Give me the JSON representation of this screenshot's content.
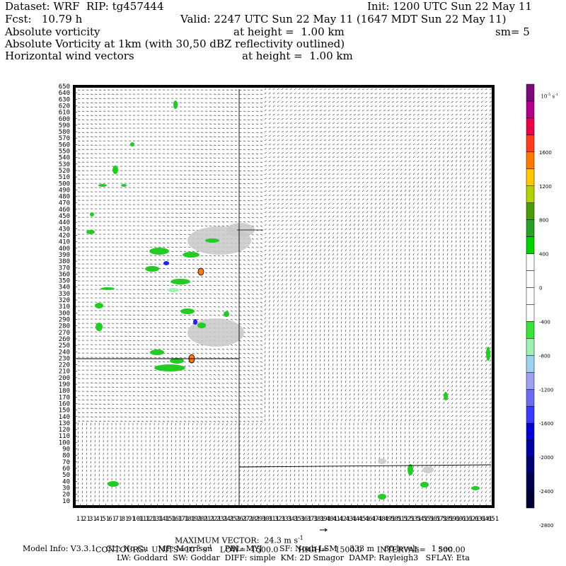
{
  "header": {
    "dataset": "Dataset: WRF  RIP: tg457444",
    "init": "Init: 1200 UTC Sun 22 May 11",
    "fcst": "Fcst:   10.79 h",
    "valid": "Valid: 2247 UTC Sun 22 May 11 (1647 MDT Sun 22 May 11)",
    "line3_left": "Absolute vorticity",
    "line3_mid": "at height =  1.00 km",
    "line3_right": "sm= 5",
    "line4": "Absolute Vorticity at 1km (with 30,50 dBZ reflectivity outlined)",
    "line5_left": "Horizontal wind vectors",
    "line5_mid": "at height =  1.00 km"
  },
  "footer": {
    "max_vector": "MAXIMUM VECTOR:  24.3 m s",
    "max_vector_sup": "-1",
    "contours": "CONTOURS:  UNITS=10",
    "contours_sup1": "-5",
    "contours_rest": " s",
    "contours_sup2": "-1",
    "contours_tail": "   LOW= -1500.0        HIGH=   1500.0      INTERVAL=     500.00",
    "model_info": "Model Info: V3.3.1    CU: No Cu    MP: Morrison     PBL: MYJ       SF: Noah LSM     333 m    60 levels     1 sec",
    "model_info2": "LW: Goddard  SW: Goddar  DIFF: simple  KM: 2D Smagor  DAMP: Rayleigh3   SFLAY: Eta"
  },
  "colorbar": {
    "unit_label": "10",
    "unit_sup": "-5",
    "unit_tail": " s",
    "unit_sup2": "-1",
    "colors": [
      "#7a0a7a",
      "#b0008a",
      "#e8004a",
      "#ff3c1e",
      "#ff7a00",
      "#ffc800",
      "#b4d200",
      "#4c9c0a",
      "#2aa02a",
      "#00d200",
      "#ffffff",
      "#ffffff",
      "#ffffff",
      "#ffffff",
      "#3ae23a",
      "#9ef0b4",
      "#9ed2f0",
      "#a0a0f0",
      "#6c6cf0",
      "#3a3aff",
      "#0000d2",
      "#0000a0",
      "#00006e",
      "#00004a",
      "#000034"
    ],
    "tick_labels": [
      "1600",
      "1200",
      "800",
      "400",
      "0",
      "-400",
      "-800",
      "-1200",
      "-1600",
      "-2000",
      "-2400",
      "-2800"
    ]
  },
  "chart_data": {
    "type": "heatmap",
    "title": "Absolute vorticity at height = 1.00 km",
    "y_tick_labels": [
      "10",
      "20",
      "30",
      "40",
      "50",
      "60",
      "70",
      "80",
      "90",
      "100",
      "110",
      "120",
      "130",
      "140",
      "150",
      "160",
      "170",
      "180",
      "190",
      "200",
      "210",
      "220",
      "230",
      "240",
      "250",
      "260",
      "270",
      "280",
      "290",
      "300",
      "310",
      "320",
      "330",
      "340",
      "350",
      "360",
      "370",
      "380",
      "390",
      "400",
      "410",
      "420",
      "430",
      "440",
      "450",
      "460",
      "470",
      "480",
      "490",
      "500",
      "510",
      "520",
      "530",
      "540",
      "550",
      "560",
      "570",
      "580",
      "590",
      "600",
      "610",
      "620",
      "630",
      "640",
      "650"
    ],
    "ylim": [
      1,
      650
    ],
    "xlim": [
      1,
      650
    ],
    "x_tick_spacing": 10,
    "contour_low": -1500.0,
    "contour_high": 1500.0,
    "contour_interval": 500.0,
    "max_vector_ms": 24.3,
    "grid": false
  }
}
